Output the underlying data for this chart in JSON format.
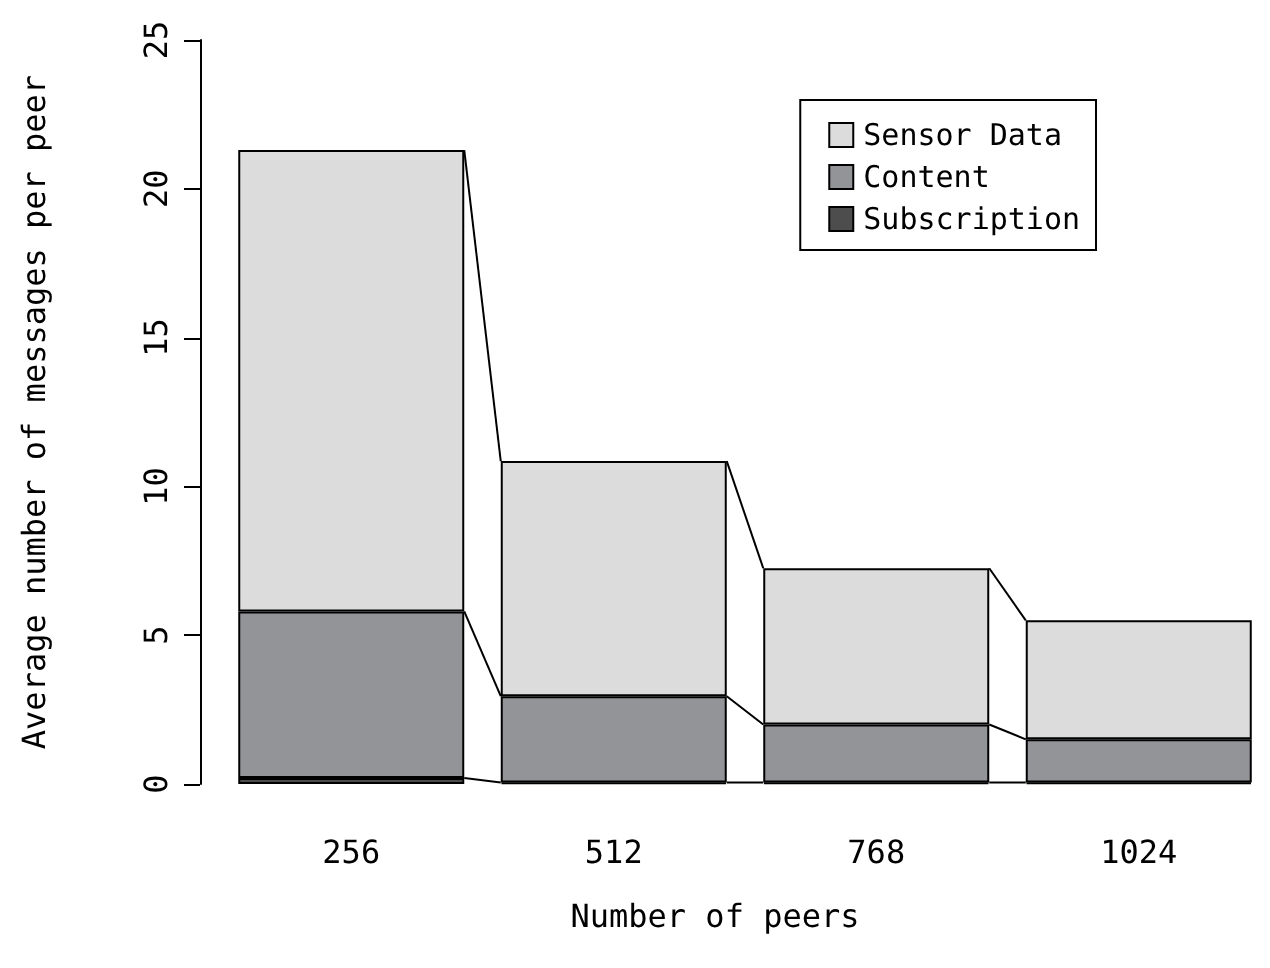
{
  "chart_data": {
    "type": "bar",
    "stacked": true,
    "xlabel": "Number of peers",
    "ylabel": "Average number of messages per peer",
    "categories": [
      "256",
      "512",
      "768",
      "1024"
    ],
    "series": [
      {
        "name": "Subscription",
        "color": "#4d4d4d",
        "values": [
          0.2,
          0.05,
          0.05,
          0.05
        ]
      },
      {
        "name": "Content",
        "color": "#939498",
        "values": [
          5.6,
          2.9,
          1.95,
          1.45
        ]
      },
      {
        "name": "Sensor Data",
        "color": "#dcdcdc",
        "values": [
          15.5,
          7.9,
          5.25,
          4.0
        ]
      }
    ],
    "ylim": [
      0,
      25
    ],
    "yticks": [
      0,
      5,
      10,
      15,
      20,
      25
    ],
    "grid": false,
    "legend": "top right"
  }
}
